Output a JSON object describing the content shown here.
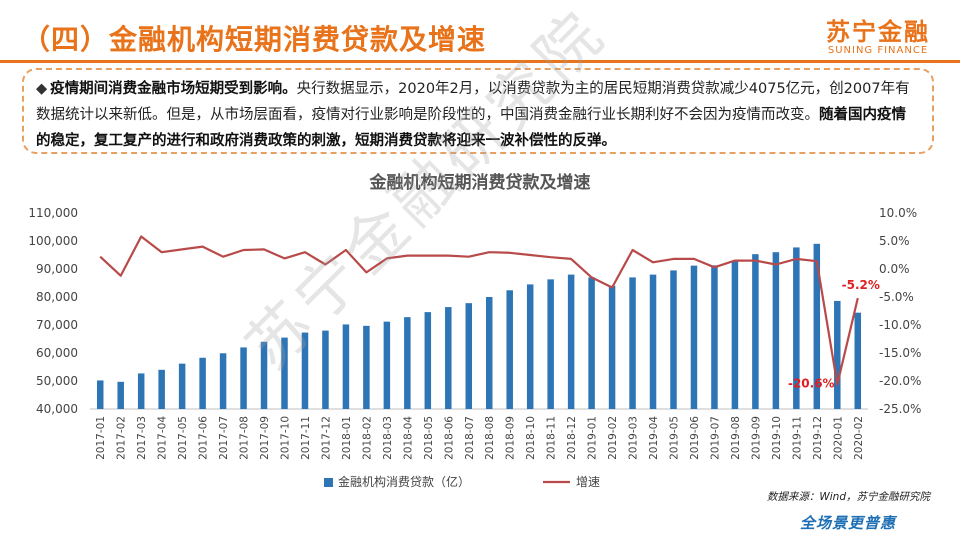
{
  "header": {
    "title": "（四）金融机构短期消费贷款及增速"
  },
  "logo": {
    "cn": "苏宁金融",
    "en": "SUNING FINANCE"
  },
  "callout": {
    "bullet": "◆",
    "bold1": "疫情期间消费金融市场短期受到影响。",
    "text1": "央行数据显示，2020年2月，以消费贷款为主的居民短期消费贷款减少4075亿元，创2007年有数据统计以来新低。但是，从市场层面看，疫情对行业影响是阶段性的，中国消费金融行业长期利好不会因为疫情而改变。",
    "bold2": "随着国内疫情的稳定，复工复产的进行和政府消费政策的刺激，短期消费贷款将迎来一波补偿性的反弹。"
  },
  "chart_data": {
    "type": "bar+line",
    "title": "金融机构短期消费贷款及增速",
    "categories": [
      "2017-01",
      "2017-02",
      "2017-03",
      "2017-04",
      "2017-05",
      "2017-06",
      "2017-07",
      "2017-08",
      "2017-09",
      "2017-10",
      "2017-11",
      "2017-12",
      "2018-01",
      "2018-02",
      "2018-03",
      "2018-04",
      "2018-05",
      "2018-06",
      "2018-07",
      "2018-08",
      "2018-09",
      "2018-10",
      "2018-11",
      "2018-12",
      "2019-01",
      "2019-02",
      "2019-03",
      "2019-04",
      "2019-05",
      "2019-06",
      "2019-07",
      "2019-08",
      "2019-09",
      "2019-10",
      "2019-11",
      "2019-12",
      "2020-01",
      "2020-02"
    ],
    "series": [
      {
        "name": "金融机构消费贷款（亿）",
        "type": "bar",
        "axis": "left",
        "color": "#2e75b6",
        "values": [
          50200,
          49700,
          52700,
          54000,
          56200,
          58300,
          59900,
          62000,
          64000,
          65500,
          67300,
          68000,
          70200,
          69700,
          71200,
          72800,
          74600,
          76400,
          77800,
          80000,
          82400,
          84500,
          86300,
          88000,
          87000,
          84000,
          87000,
          88000,
          89500,
          91200,
          91300,
          92700,
          95300,
          96000,
          97700,
          99000,
          78600,
          74400
        ]
      },
      {
        "name": "增速",
        "type": "line",
        "axis": "right",
        "color": "#b84a4a",
        "values": [
          2.2,
          -1.2,
          5.8,
          3.0,
          3.5,
          4.0,
          2.2,
          3.4,
          3.5,
          1.9,
          3.0,
          0.8,
          3.4,
          -0.6,
          1.9,
          2.4,
          2.4,
          2.4,
          2.2,
          3.0,
          2.9,
          2.5,
          2.1,
          1.8,
          -1.5,
          -3.3,
          3.4,
          1.2,
          1.8,
          1.8,
          0.3,
          1.5,
          1.5,
          0.8,
          1.8,
          1.4,
          -20.6,
          -5.2
        ]
      }
    ],
    "left_axis": {
      "min": 40000,
      "max": 110000,
      "step": 10000
    },
    "right_axis": {
      "min": -25,
      "max": 10,
      "step": 5,
      "unit": "%"
    },
    "left_tick_labels": [
      "110,000",
      "100,000",
      "90,000",
      "80,000",
      "70,000",
      "60,000",
      "50,000",
      "40,000"
    ],
    "right_tick_labels": [
      "10.0%",
      "5.0%",
      "0.0%",
      "-5.0%",
      "-10.0%",
      "-15.0%",
      "-20.0%",
      "-25.0%"
    ],
    "annotations": [
      {
        "category": "2020-01",
        "text": "-20.6%"
      },
      {
        "category": "2020-02",
        "text": "-5.2%"
      }
    ],
    "legend": {
      "position": "bottom",
      "items": [
        "金融机构消费贷款（亿）",
        "增速"
      ]
    },
    "grid": false
  },
  "watermark": "苏宁金融研究院",
  "source": "数据来源：Wind，苏宁金融研究院",
  "slogan": "全场景更普惠"
}
